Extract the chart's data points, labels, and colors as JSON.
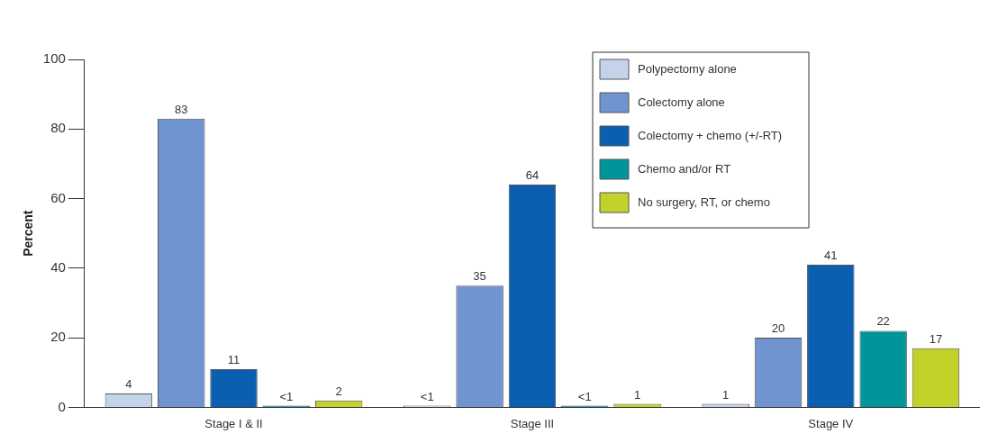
{
  "chart_data": {
    "type": "bar",
    "ylabel": "Percent",
    "categories": [
      "Stage I & II",
      "Stage III",
      "Stage IV"
    ],
    "series": [
      {
        "name": "Polypectomy alone",
        "color": "#c5d3ea",
        "values": [
          4,
          0.5,
          1
        ],
        "value_labels": [
          "4",
          "<1",
          "1"
        ]
      },
      {
        "name": "Colectomy alone",
        "color": "#6f94d0",
        "values": [
          83,
          35,
          20
        ],
        "value_labels": [
          "83",
          "35",
          "20"
        ]
      },
      {
        "name": "Colectomy + chemo (+/-RT)",
        "color": "#0a5fb0",
        "values": [
          11,
          64,
          41
        ],
        "value_labels": [
          "11",
          "64",
          "41"
        ]
      },
      {
        "name": "Chemo and/or RT",
        "color": "#00959a",
        "values": [
          0.5,
          0.5,
          22
        ],
        "value_labels": [
          "<1",
          "<1",
          "22"
        ]
      },
      {
        "name": "No surgery, RT, or chemo",
        "color": "#c3d22a",
        "values": [
          2,
          1,
          17
        ],
        "value_labels": [
          "2",
          "1",
          "17"
        ]
      }
    ],
    "ylim": [
      0,
      100
    ],
    "yticks": [
      0,
      20,
      40,
      60,
      80,
      100
    ],
    "grid": false,
    "legend": "top right"
  }
}
